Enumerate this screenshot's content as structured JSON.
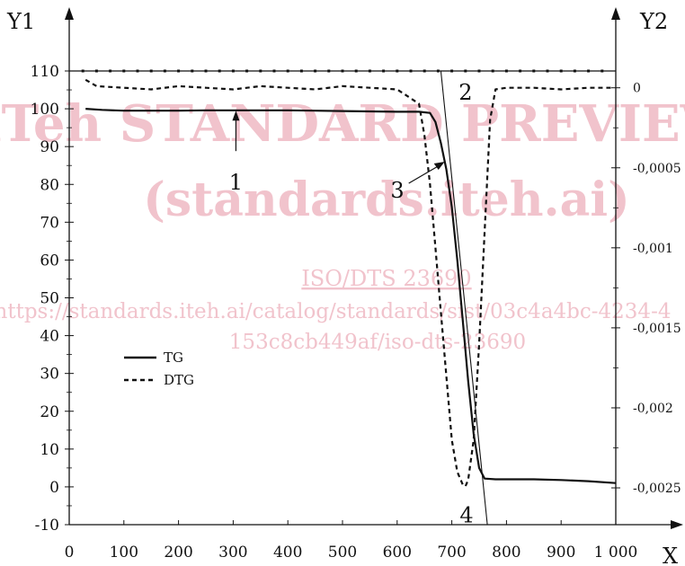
{
  "watermark": {
    "line1": "iTeh STANDARD PREVIEW",
    "line2": "(standards.iteh.ai)",
    "line3": "ISO/DTS 23690",
    "line4": "https://standards.iteh.ai/catalog/standards/sist/03c4a4bc-4234-4",
    "line5": "153c8cb449af/iso-dts-23690"
  },
  "chart_data": {
    "type": "line",
    "xlabel": "X",
    "ylabel": "Y1",
    "y2label": "Y2",
    "xlim": [
      0,
      1000
    ],
    "ylim": [
      -10,
      110
    ],
    "y2lim": [
      -0.00273,
      0.000105
    ],
    "x_ticks": [
      {
        "value": 0,
        "label": "0"
      },
      {
        "value": 100,
        "label": "100"
      },
      {
        "value": 200,
        "label": "200"
      },
      {
        "value": 300,
        "label": "300"
      },
      {
        "value": 400,
        "label": "400"
      },
      {
        "value": 500,
        "label": "500"
      },
      {
        "value": 600,
        "label": "600"
      },
      {
        "value": 700,
        "label": "700"
      },
      {
        "value": 800,
        "label": "800"
      },
      {
        "value": 900,
        "label": "900"
      },
      {
        "value": 1000,
        "label": "1 000"
      }
    ],
    "y_ticks": [
      {
        "value": 110,
        "label": "110"
      },
      {
        "value": 100,
        "label": "100"
      },
      {
        "value": 90,
        "label": "90"
      },
      {
        "value": 80,
        "label": "80"
      },
      {
        "value": 70,
        "label": "70"
      },
      {
        "value": 60,
        "label": "60"
      },
      {
        "value": 50,
        "label": "50"
      },
      {
        "value": 40,
        "label": "40"
      },
      {
        "value": 30,
        "label": "30"
      },
      {
        "value": 20,
        "label": "20"
      },
      {
        "value": 10,
        "label": "10"
      },
      {
        "value": 0,
        "label": "0"
      },
      {
        "value": -10,
        "label": "-10"
      }
    ],
    "y2_ticks": [
      {
        "value": 0,
        "label": "0"
      },
      {
        "value": -0.0005,
        "label": "-0,0005"
      },
      {
        "value": -0.001,
        "label": "-0,001"
      },
      {
        "value": -0.0015,
        "label": "-0,0015"
      },
      {
        "value": -0.002,
        "label": "-0,002"
      },
      {
        "value": -0.0025,
        "label": "-0,0025"
      }
    ],
    "reference_line": {
      "y": 110
    },
    "series": [
      {
        "name": "TG",
        "axis": "y1",
        "style": "solid",
        "x": [
          30,
          60,
          100,
          150,
          200,
          250,
          300,
          350,
          400,
          450,
          500,
          550,
          600,
          640,
          660,
          670,
          680,
          690,
          700,
          710,
          720,
          730,
          740,
          750,
          760,
          780,
          800,
          850,
          900,
          950,
          1000
        ],
        "y": [
          100,
          99.7,
          99.5,
          99.5,
          99.5,
          99.6,
          99.6,
          99.6,
          99.6,
          99.5,
          99.4,
          99.3,
          99.2,
          99.2,
          98.9,
          96.5,
          91,
          84,
          74,
          60,
          44,
          28,
          14,
          5,
          2.2,
          2,
          2,
          2,
          1.8,
          1.5,
          1
        ]
      },
      {
        "name": "DTG",
        "axis": "y2",
        "style": "dashed",
        "x": [
          30,
          50,
          100,
          150,
          200,
          250,
          300,
          350,
          400,
          450,
          500,
          550,
          600,
          640,
          650,
          660,
          670,
          680,
          690,
          700,
          710,
          720,
          725,
          730,
          740,
          750,
          760,
          770,
          780,
          800,
          850,
          900,
          950,
          995
        ],
        "y": [
          5e-05,
          1e-05,
          0,
          -1e-05,
          1e-05,
          0,
          -1e-05,
          1e-05,
          0,
          -1e-05,
          1e-05,
          0,
          -1e-05,
          -0.0001,
          -0.0003,
          -0.0006,
          -0.001,
          -0.0014,
          -0.0018,
          -0.0022,
          -0.0024,
          -0.00248,
          -0.00249,
          -0.00245,
          -0.0022,
          -0.0016,
          -0.0009,
          -0.0002,
          -1e-05,
          0,
          0,
          -1e-05,
          0,
          0
        ]
      }
    ],
    "tangent_line": {
      "x1": 680,
      "y1": 110,
      "x2": 765,
      "y2": -10
    },
    "annotations": [
      {
        "id": "1",
        "text": "1",
        "x": 305,
        "y": 99.5
      },
      {
        "id": "2",
        "text": "2",
        "x": 683,
        "y": 110
      },
      {
        "id": "3",
        "text": "3",
        "x": 687,
        "y": 86
      },
      {
        "id": "4",
        "text": "4",
        "x": 727,
        "y": -0.00252
      }
    ],
    "legend": {
      "position": "left-middle",
      "entries": [
        "TG",
        "DTG"
      ]
    }
  }
}
